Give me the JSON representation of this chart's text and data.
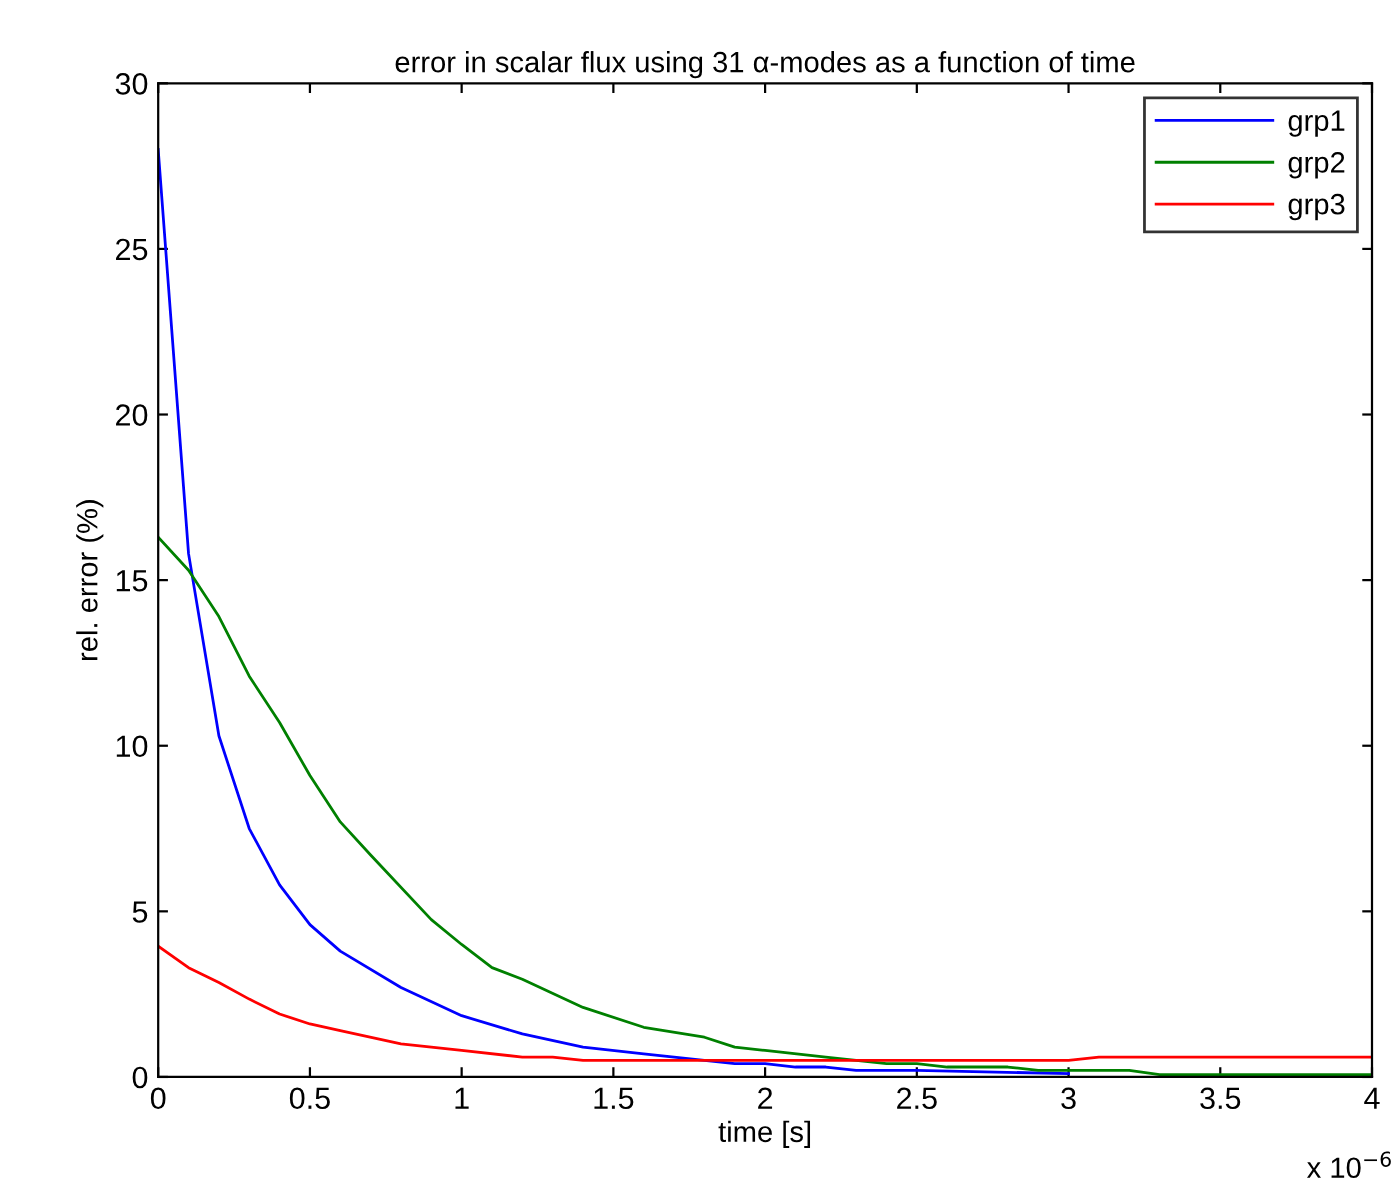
{
  "chart_data": {
    "type": "line",
    "title": "error in scalar flux using 31 α-modes as a function of time",
    "xlabel": "time [s]",
    "ylabel": "rel. error (%)",
    "annotations": [
      "x 10$^{−6}$"
    ],
    "series": [
      {
        "name": "grp1",
        "color": "#0000ff",
        "x": [
          0,
          0.1,
          0.2,
          0.3,
          0.4,
          0.5,
          0.6,
          0.8,
          1.0,
          1.2,
          1.4,
          1.6,
          1.8,
          1.9,
          2.0,
          2.1,
          2.2,
          2.3,
          2.5,
          3.0
        ],
        "values": [
          28,
          15.8,
          10.3,
          7.5,
          5.8,
          4.6,
          3.8,
          2.7,
          1.85,
          1.3,
          0.9,
          0.7,
          0.5,
          0.4,
          0.4,
          0.3,
          0.3,
          0.2,
          0.2,
          0.1
        ]
      },
      {
        "name": "grp2",
        "color": "#008000",
        "x": [
          0,
          0.1,
          0.2,
          0.3,
          0.4,
          0.5,
          0.6,
          0.7,
          0.9,
          1.0,
          1.1,
          1.2,
          1.4,
          1.6,
          1.8,
          1.9,
          2.0,
          2.2,
          2.4,
          2.5,
          2.6,
          2.8,
          2.9,
          3.2,
          3.3,
          4.0
        ],
        "values": [
          16.3,
          15.3,
          13.9,
          12.1,
          10.7,
          9.1,
          7.7,
          6.7,
          4.75,
          4.0,
          3.3,
          2.95,
          2.1,
          1.5,
          1.2,
          0.9,
          0.8,
          0.6,
          0.4,
          0.4,
          0.3,
          0.3,
          0.2,
          0.2,
          0.07,
          0.07
        ]
      },
      {
        "name": "grp3",
        "color": "#ff0000",
        "x": [
          0,
          0.1,
          0.2,
          0.3,
          0.4,
          0.5,
          0.6,
          0.8,
          0.9,
          1.0,
          1.2,
          1.3,
          1.4,
          3.0,
          3.1,
          4.0
        ],
        "values": [
          3.95,
          3.3,
          2.85,
          2.35,
          1.9,
          1.6,
          1.4,
          1.0,
          0.9,
          0.8,
          0.6,
          0.6,
          0.5,
          0.5,
          0.6,
          0.6
        ]
      }
    ],
    "xlim": [
      0,
      4
    ],
    "ylim": [
      0,
      30
    ],
    "xticks": [
      0,
      0.5,
      1,
      1.5,
      2,
      2.5,
      3,
      3.5,
      4
    ],
    "yticks": [
      0,
      5,
      10,
      15,
      20,
      25,
      30
    ],
    "grid": false,
    "legend": "top right",
    "marker": "none",
    "line_style": "solid"
  }
}
